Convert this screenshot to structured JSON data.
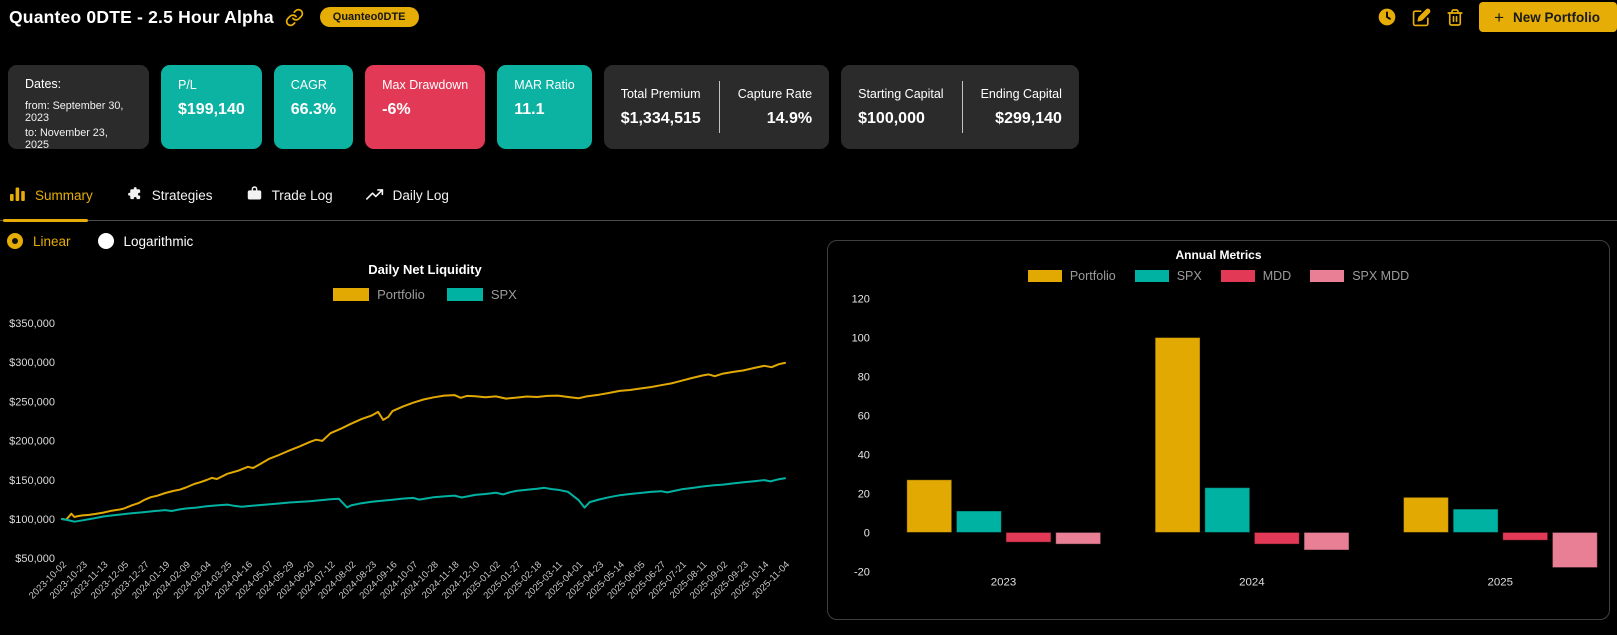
{
  "colors": {
    "gold": "#e2a902",
    "teal": "#00b2a2",
    "red": "#e23a56",
    "pink": "#e87f95",
    "card_teal": "#0cb2a2",
    "card_red": "#e23a56",
    "card_dark": "#2b2b2b"
  },
  "header": {
    "title": "Quanteo 0DTE - 2.5 Hour Alpha",
    "badge": "Quanteo0DTE",
    "new_portfolio": {
      "plus": "+",
      "label": "New Portfolio"
    }
  },
  "icons": {
    "header": [
      "link-icon",
      "history-clock-icon",
      "edit-icon",
      "delete-trash-icon",
      "plus-icon"
    ],
    "tabs": [
      "bar-chart-icon",
      "puzzle-icon",
      "briefcase-icon",
      "trend-up-icon"
    ]
  },
  "stats": {
    "dates": {
      "label": "Dates:",
      "from": "from: September 30, 2023",
      "to": "to: November 23, 2025"
    },
    "metrics": [
      {
        "label": "P/L",
        "value": "$199,140",
        "style": "teal"
      },
      {
        "label": "CAGR",
        "value": "66.3%",
        "style": "teal"
      },
      {
        "label": "Max Drawdown",
        "value": "-6%",
        "style": "red"
      },
      {
        "label": "MAR Ratio",
        "value": "11.1",
        "style": "teal"
      }
    ],
    "pairs": [
      {
        "left": {
          "label": "Total Premium",
          "value": "$1,334,515"
        },
        "right": {
          "label": "Capture Rate",
          "value": "14.9%"
        }
      },
      {
        "left": {
          "label": "Starting Capital",
          "value": "$100,000"
        },
        "right": {
          "label": "Ending Capital",
          "value": "$299,140"
        }
      }
    ]
  },
  "tabs": [
    {
      "label": "Summary",
      "active": true
    },
    {
      "label": "Strategies",
      "active": false
    },
    {
      "label": "Trade Log",
      "active": false
    },
    {
      "label": "Daily Log",
      "active": false
    }
  ],
  "scale_toggle": {
    "options": [
      {
        "label": "Linear",
        "selected": true
      },
      {
        "label": "Logarithmic",
        "selected": false
      }
    ]
  },
  "chart_data": [
    {
      "type": "line",
      "title": "Daily Net Liquidity",
      "legend_position": "top",
      "grid": false,
      "y_unit": "USD (values below in thousands)",
      "y_ticks_thousands": [
        350,
        300,
        250,
        200,
        150,
        100,
        50
      ],
      "ylim_thousands": [
        45,
        365
      ],
      "x_labels": [
        "2023-10-02",
        "2023-10-23",
        "2023-11-13",
        "2023-12-05",
        "2023-12-27",
        "2024-01-19",
        "2024-02-09",
        "2024-03-04",
        "2024-03-25",
        "2024-04-16",
        "2024-05-07",
        "2024-05-29",
        "2024-06-20",
        "2024-07-12",
        "2024-08-02",
        "2024-08-23",
        "2024-09-16",
        "2024-10-07",
        "2024-10-28",
        "2024-11-18",
        "2024-12-10",
        "2025-01-02",
        "2025-01-27",
        "2025-02-18",
        "2025-03-11",
        "2025-04-01",
        "2025-04-23",
        "2025-05-14",
        "2025-06-05",
        "2025-06-27",
        "2025-07-21",
        "2025-08-11",
        "2025-09-02",
        "2025-09-23",
        "2025-10-14",
        "2025-11-04"
      ],
      "series": [
        {
          "name": "Portfolio",
          "color": "#e2a902",
          "points": [
            [
              0,
              100
            ],
            [
              0.2,
              99.2
            ],
            [
              0.35,
              103.5
            ],
            [
              0.45,
              106.8
            ],
            [
              0.6,
              102.6
            ],
            [
              0.8,
              103.8
            ],
            [
              1,
              104.6
            ],
            [
              1.3,
              105.2
            ],
            [
              1.6,
              106.4
            ],
            [
              2,
              108.2
            ],
            [
              2.4,
              110.6
            ],
            [
              2.8,
              112.1
            ],
            [
              3,
              113.4
            ],
            [
              3.4,
              117.6
            ],
            [
              3.7,
              120.2
            ],
            [
              4,
              124.5
            ],
            [
              4.3,
              127.8
            ],
            [
              4.6,
              129.6
            ],
            [
              5,
              133.2
            ],
            [
              5.4,
              135.8
            ],
            [
              5.7,
              137.4
            ],
            [
              6,
              140.2
            ],
            [
              6.4,
              144.6
            ],
            [
              6.7,
              146.9
            ],
            [
              7,
              149.8
            ],
            [
              7.25,
              152.4
            ],
            [
              7.5,
              151
            ],
            [
              8,
              157.6
            ],
            [
              8.5,
              161.4
            ],
            [
              9,
              166.6
            ],
            [
              9.25,
              165
            ],
            [
              9.6,
              170.2
            ],
            [
              10,
              176.4
            ],
            [
              10.5,
              181.6
            ],
            [
              11,
              187.2
            ],
            [
              11.5,
              192.6
            ],
            [
              12,
              198.4
            ],
            [
              12.3,
              201.2
            ],
            [
              12.6,
              199.6
            ],
            [
              13,
              209.4
            ],
            [
              13.5,
              215.2
            ],
            [
              14,
              221.6
            ],
            [
              14.5,
              227.4
            ],
            [
              15,
              232.2
            ],
            [
              15.3,
              236.6
            ],
            [
              15.55,
              226.4
            ],
            [
              15.8,
              230.4
            ],
            [
              16,
              237.6
            ],
            [
              16.5,
              243.4
            ],
            [
              17,
              248.4
            ],
            [
              17.5,
              252.4
            ],
            [
              18,
              255.2
            ],
            [
              18.5,
              257.4
            ],
            [
              19,
              258
            ],
            [
              19.3,
              254.6
            ],
            [
              19.6,
              257
            ],
            [
              20,
              256.6
            ],
            [
              20.5,
              255.2
            ],
            [
              21,
              256.4
            ],
            [
              21.5,
              253.6
            ],
            [
              22,
              254.8
            ],
            [
              22.5,
              256.2
            ],
            [
              23,
              255.6
            ],
            [
              23.5,
              257
            ],
            [
              24,
              257.4
            ],
            [
              24.5,
              255.6
            ],
            [
              25,
              254
            ],
            [
              25.4,
              256.4
            ],
            [
              26,
              258.6
            ],
            [
              26.5,
              260.8
            ],
            [
              27,
              263.4
            ],
            [
              27.5,
              264.6
            ],
            [
              28,
              266.4
            ],
            [
              28.5,
              268.2
            ],
            [
              29,
              270.6
            ],
            [
              29.5,
              273
            ],
            [
              30,
              276.4
            ],
            [
              30.5,
              279.8
            ],
            [
              31,
              283
            ],
            [
              31.3,
              284.4
            ],
            [
              31.6,
              282.2
            ],
            [
              32,
              285.4
            ],
            [
              32.5,
              287.6
            ],
            [
              33,
              289.6
            ],
            [
              33.5,
              292.6
            ],
            [
              34,
              295.4
            ],
            [
              34.35,
              293.6
            ],
            [
              34.7,
              297.4
            ],
            [
              35,
              299.1
            ]
          ]
        },
        {
          "name": "SPX",
          "color": "#00b2a2",
          "points": [
            [
              0,
              100
            ],
            [
              0.3,
              98.6
            ],
            [
              0.6,
              96.6
            ],
            [
              1,
              98.4
            ],
            [
              1.5,
              100.6
            ],
            [
              2,
              103.2
            ],
            [
              2.5,
              104.8
            ],
            [
              3,
              106.2
            ],
            [
              3.5,
              107.6
            ],
            [
              4,
              108.8
            ],
            [
              4.5,
              110.2
            ],
            [
              5,
              111.4
            ],
            [
              5.3,
              110.2
            ],
            [
              5.7,
              112.2
            ],
            [
              6,
              113.4
            ],
            [
              6.5,
              114.6
            ],
            [
              7,
              116.2
            ],
            [
              7.5,
              117.4
            ],
            [
              8,
              118.4
            ],
            [
              8.3,
              117
            ],
            [
              8.7,
              115.6
            ],
            [
              9,
              116.4
            ],
            [
              9.5,
              117.6
            ],
            [
              10,
              118.6
            ],
            [
              10.5,
              119.8
            ],
            [
              11,
              121
            ],
            [
              11.5,
              121.8
            ],
            [
              12,
              122.6
            ],
            [
              12.5,
              123.8
            ],
            [
              13,
              125.2
            ],
            [
              13.4,
              125.9
            ],
            [
              13.8,
              114.8
            ],
            [
              14,
              117.4
            ],
            [
              14.5,
              120.2
            ],
            [
              15,
              121.9
            ],
            [
              15.5,
              123.4
            ],
            [
              16,
              124.6
            ],
            [
              16.5,
              126
            ],
            [
              17,
              126.9
            ],
            [
              17.3,
              124.8
            ],
            [
              17.7,
              126.4
            ],
            [
              18,
              127.8
            ],
            [
              18.5,
              128.8
            ],
            [
              19,
              129.9
            ],
            [
              19.35,
              127.4
            ],
            [
              19.7,
              129.2
            ],
            [
              20,
              130.8
            ],
            [
              20.5,
              131.9
            ],
            [
              21,
              133.6
            ],
            [
              21.35,
              131.4
            ],
            [
              21.7,
              134.2
            ],
            [
              22,
              135.8
            ],
            [
              22.5,
              137.4
            ],
            [
              23,
              138.6
            ],
            [
              23.35,
              139.8
            ],
            [
              23.7,
              138.2
            ],
            [
              24,
              137.4
            ],
            [
              24.5,
              134.6
            ],
            [
              25,
              124.4
            ],
            [
              25.3,
              114.5
            ],
            [
              25.55,
              121.6
            ],
            [
              26,
              124.9
            ],
            [
              26.5,
              127.8
            ],
            [
              27,
              130.4
            ],
            [
              27.5,
              131.9
            ],
            [
              28,
              133.2
            ],
            [
              28.5,
              134.6
            ],
            [
              29,
              135.4
            ],
            [
              29.3,
              133.9
            ],
            [
              29.7,
              136.2
            ],
            [
              30,
              137.9
            ],
            [
              30.5,
              139.6
            ],
            [
              31,
              141.4
            ],
            [
              31.5,
              142.8
            ],
            [
              32,
              143.9
            ],
            [
              32.5,
              145.4
            ],
            [
              33,
              146.8
            ],
            [
              33.5,
              148.2
            ],
            [
              34,
              149.6
            ],
            [
              34.3,
              147.9
            ],
            [
              34.7,
              150.8
            ],
            [
              35,
              151.9
            ]
          ]
        }
      ]
    },
    {
      "type": "bar",
      "title": "Annual Metrics",
      "legend_position": "top",
      "grid": false,
      "categories": [
        "2023",
        "2024",
        "2025"
      ],
      "y_ticks": [
        120,
        100,
        80,
        60,
        40,
        20,
        0,
        -20
      ],
      "ylim": [
        -28,
        130
      ],
      "series": [
        {
          "name": "Portfolio",
          "color": "#e2a902",
          "values": [
            27,
            100,
            18
          ]
        },
        {
          "name": "SPX",
          "color": "#00b2a2",
          "values": [
            11,
            23,
            12
          ]
        },
        {
          "name": "MDD",
          "color": "#e23a56",
          "values": [
            -5,
            -6,
            -4
          ]
        },
        {
          "name": "SPX MDD",
          "color": "#e87f95",
          "values": [
            -6,
            -9,
            -18
          ]
        }
      ]
    }
  ]
}
